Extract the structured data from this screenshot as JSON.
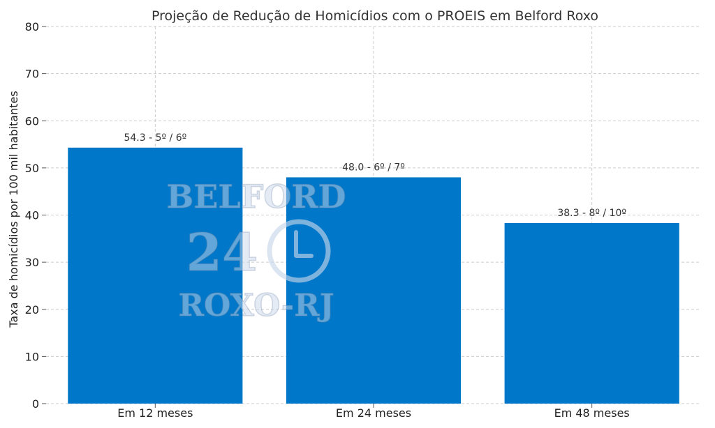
{
  "chart_data": {
    "type": "bar",
    "title": "Projeção de Redução de Homicídios com o PROEIS em Belford Roxo",
    "xlabel": "",
    "ylabel": "Taxa de homicídios por 100 mil habitantes",
    "categories": [
      "Em 12 meses",
      "Em 24 meses",
      "Em 48 meses"
    ],
    "values": [
      54.3,
      48.0,
      38.3
    ],
    "data_labels": [
      "54.3 - 5º / 6º",
      "48.0 - 6º / 7º",
      "38.3 - 8º / 10º"
    ],
    "ylim": [
      0,
      80
    ],
    "yticks": [
      0,
      10,
      20,
      30,
      40,
      50,
      60,
      70,
      80
    ],
    "grid": true,
    "bar_color": "#0077c8"
  },
  "watermark": {
    "line1": "BELFORD",
    "line2": "24",
    "line3": "ROXO-RJ",
    "icon": "clock-icon"
  }
}
